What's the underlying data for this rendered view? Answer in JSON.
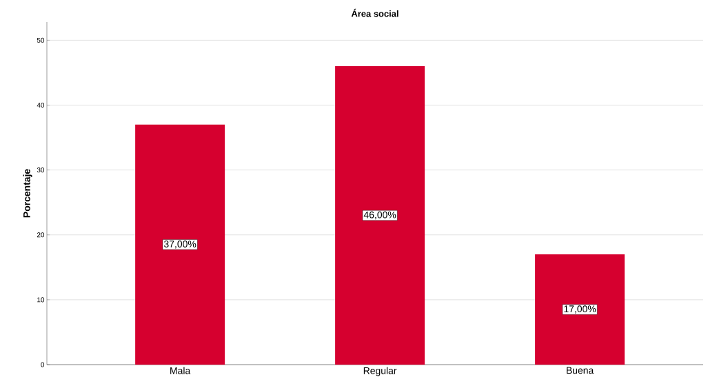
{
  "chart_data": {
    "type": "bar",
    "title": "Área social",
    "ylabel": "Porcentaje",
    "categories": [
      "Mala",
      "Regular",
      "Buena"
    ],
    "values": [
      37,
      46,
      17
    ],
    "value_labels": [
      "37,00%",
      "46,00%",
      "17,00%"
    ],
    "color": "#d6002f",
    "ylim": [
      0,
      52.8
    ],
    "yticks": [
      0,
      10,
      20,
      30,
      40,
      50
    ],
    "grid": "y"
  }
}
